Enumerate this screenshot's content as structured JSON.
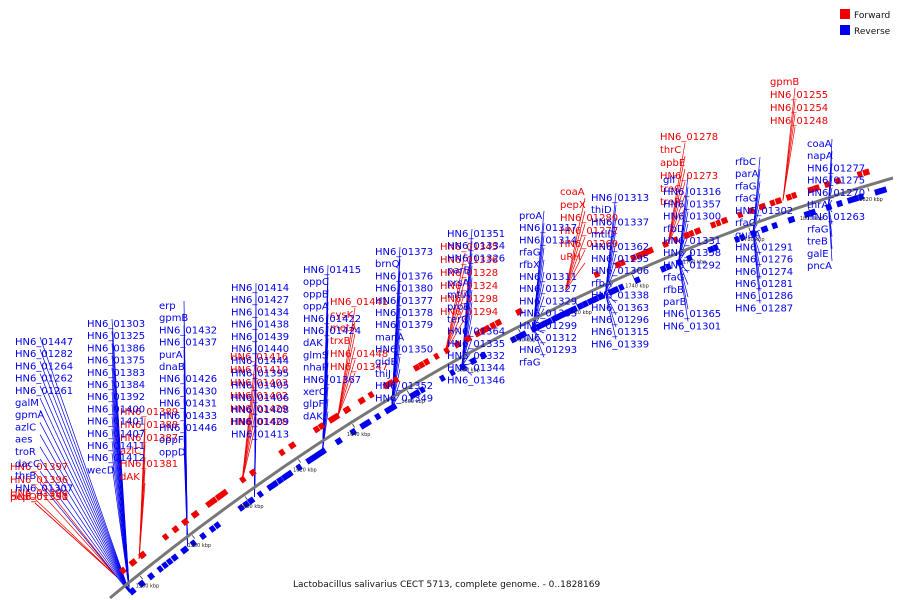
{
  "title": "Lactobacillus salivarius CECT 5713, complete genome. - 0..1828169",
  "legend": [
    {
      "label": "Forward",
      "color": "#ee0000"
    },
    {
      "label": "Reverse",
      "color": "#0000ee"
    }
  ],
  "colors": {
    "forward": "#ee0000",
    "reverse": "#0000ee",
    "backbone": "#777777"
  },
  "ticks": [
    "1560 kbp",
    "1580 kbp",
    "1600 kbp",
    "1620 kbp",
    "1640 kbp",
    "1660 kbp",
    "1680 kbp",
    "1700 kbp",
    "1720 kbp",
    "1740 kbp",
    "1760 kbp",
    "1780 kbp",
    "1800 kbp",
    "1820 kbp"
  ],
  "forward_labels": [
    "HN6_01397",
    "HN6_01396",
    "HN6_01394",
    "pepO",
    "HN6_01391",
    "HN6_01390",
    "HN6_01389",
    "HN6_01388",
    "HN6_01387",
    "azlC",
    "HN6_01381",
    "dAK",
    "HN6_01416",
    "HN6_01410",
    "HN6_01403",
    "HN6_01402",
    "HN6_01429",
    "HN6_01428",
    "HN6_01441",
    "cysK",
    "metA",
    "trxB",
    "HN6_01448",
    "HN6_01347",
    "HN6_01345",
    "HN6_01336",
    "HN6_01328",
    "HN6_01324",
    "HN6_01298",
    "HN6_01294",
    "coaA",
    "pepX",
    "HN6_01280",
    "HN6_01272",
    "HN6_01269",
    "uRH",
    "HN6_01278",
    "thrC",
    "apbE",
    "HN6_01273",
    "treC",
    "treR",
    "gpmB",
    "HN6_01255",
    "HN6_01254",
    "HN6_01248"
  ],
  "reverse_labels": [
    "HN6_01447",
    "HN6_01282",
    "HN6_01264",
    "HN6_01262",
    "HN6_01261",
    "galM",
    "gpmA",
    "azlC",
    "aes",
    "troR",
    "dacC",
    "thrB",
    "HN6_01307",
    "HN6_01303",
    "HN6_01325",
    "HN6_01386",
    "HN6_01375",
    "HN6_01383",
    "HN6_01384",
    "HN6_01392",
    "HN6_01400",
    "HN6_01401",
    "HN6_01407",
    "HN6_01411",
    "HN6_01412",
    "wecD",
    "erp",
    "gpmB",
    "HN6_01432",
    "HN6_01437",
    "purA",
    "dnaB",
    "HN6_01426",
    "HN6_01430",
    "HN6_01431",
    "HN6_01433",
    "HN6_01446",
    "oppF",
    "oppD",
    "HN6_01414",
    "HN6_01427",
    "HN6_01434",
    "HN6_01438",
    "HN6_01439",
    "HN6_01440",
    "HN6_01444",
    "HN6_01395",
    "HN6_01405",
    "HN6_01406",
    "HN6_01408",
    "HN6_01409",
    "HN6_01413",
    "HN6_01415",
    "oppC",
    "oppB",
    "oppA",
    "HN6_01422",
    "HN6_01424",
    "dAK",
    "glmS",
    "nhaP",
    "HN6_01367",
    "xerC",
    "glpF",
    "dAK",
    "HN6_01373",
    "brnQ",
    "HN6_01376",
    "HN6_01380",
    "HN6_01377",
    "HN6_01378",
    "HN6_01379",
    "manA",
    "HN6_01350",
    "gidB",
    "thiJ",
    "HN6_01352",
    "HN6_01349",
    "HN6_01351",
    "HN6_01334",
    "HN6_01326",
    "parB",
    "prsA",
    "mtlA",
    "proB",
    "terC",
    "HN6_01364",
    "HN6_01335",
    "HN6_01332",
    "HN6_01344",
    "HN6_01346",
    "proA",
    "HN6_01317",
    "HN6_01314",
    "rfaG",
    "rfbX",
    "HN6_01311",
    "HN6_01327",
    "HN6_01329",
    "HN6_01333",
    "HN6_01299",
    "HN6_01312",
    "HN6_01293",
    "rfaG",
    "HN6_01313",
    "thiD",
    "HN6_01337",
    "mtlD",
    "HN6_01362",
    "HN6_01295",
    "HN6_01306",
    "rfbA",
    "HN6_01338",
    "HN6_01363",
    "HN6_01296",
    "HN6_01315",
    "HN6_01339",
    "glf",
    "HN6_01316",
    "HN6_01357",
    "HN6_01300",
    "rfbD",
    "HN6_01331",
    "HN6_01358",
    "HN6_01292",
    "rfaG",
    "rfbB",
    "parB",
    "HN6_01365",
    "HN6_01301",
    "rfbC",
    "parA",
    "rfaG",
    "rfaG",
    "HN6_01302",
    "rfaG",
    "guaA",
    "HN6_01291",
    "HN6_01276",
    "HN6_01274",
    "HN6_01281",
    "HN6_01286",
    "HN6_01287",
    "coaA",
    "napA",
    "HN6_01277",
    "HN6_01275",
    "HN6_01270",
    "thrA",
    "HN6_01263",
    "rfaG",
    "treB",
    "galE",
    "pncA"
  ]
}
